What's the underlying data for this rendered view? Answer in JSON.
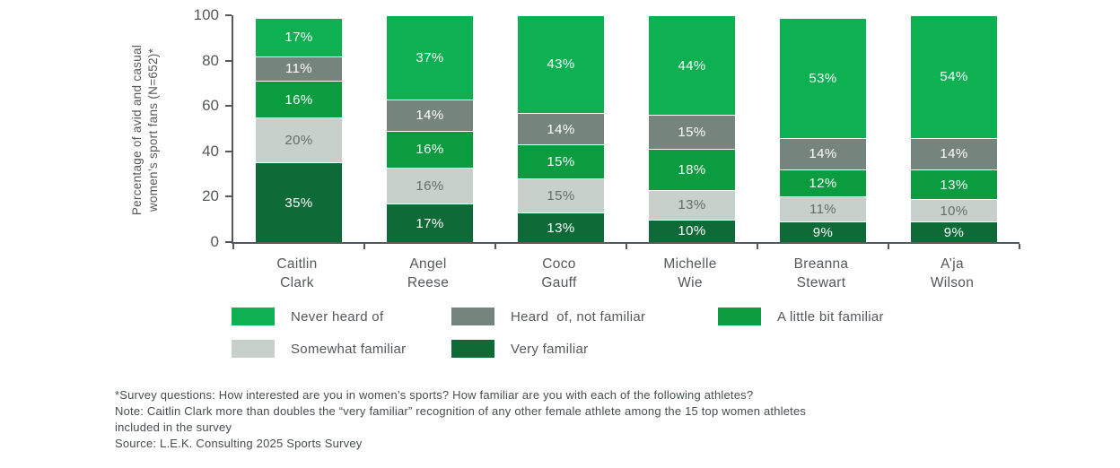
{
  "colors": {
    "never_heard_of": "#0db152",
    "heard_of_not_familiar": "#75857d",
    "a_little_bit_familiar": "#0a9c3e",
    "somewhat_familiar": "#c7d0cb",
    "very_familiar": "#0e6b38",
    "axis": "#54575b",
    "text": "#54575b",
    "footnote_text": "#474c4e",
    "segment_label_light": "#ffffff",
    "segment_label_dark": "#646e68"
  },
  "chart_data": {
    "type": "bar",
    "stacked": true,
    "title": "",
    "ylabel": "Percentage of avid and casual women’s sport fans (N=652)*",
    "ylabel_lines": [
      "Percentage of avid and casual",
      "women’s sport fans (N=652)*"
    ],
    "xlabel": "",
    "ylim": [
      0,
      100
    ],
    "yticks": [
      0,
      20,
      40,
      60,
      80,
      100
    ],
    "grid": false,
    "legend_position": "bottom",
    "series_order": "bottom-to-top",
    "categories": [
      "Caitlin Clark",
      "Angel Reese",
      "Coco Gauff",
      "Michelle Wie",
      "Breanna Stewart",
      "A’ja Wilson"
    ],
    "categories_lines": [
      [
        "Caitlin",
        "Clark"
      ],
      [
        "Angel",
        "Reese"
      ],
      [
        "Coco",
        "Gauff"
      ],
      [
        "Michelle",
        "Wie"
      ],
      [
        "Breanna",
        "Stewart"
      ],
      [
        "A’ja",
        "Wilson"
      ]
    ],
    "series": [
      {
        "name": "Very familiar",
        "color": "#0e6b38",
        "label_color": "#ffffff",
        "values": [
          35,
          17,
          13,
          10,
          9,
          9
        ]
      },
      {
        "name": "Somewhat familiar",
        "color": "#c7d0cb",
        "label_color": "#646e68",
        "values": [
          20,
          16,
          15,
          13,
          11,
          10
        ]
      },
      {
        "name": "A little bit familiar",
        "color": "#0a9c3e",
        "label_color": "#ffffff",
        "values": [
          16,
          16,
          15,
          18,
          12,
          13
        ]
      },
      {
        "name": "Heard  of, not familiar",
        "color": "#75857d",
        "label_color": "#ffffff",
        "values": [
          11,
          14,
          14,
          15,
          14,
          14
        ]
      },
      {
        "name": "Never heard of",
        "color": "#0db152",
        "label_color": "#ffffff",
        "values": [
          17,
          37,
          43,
          44,
          53,
          54
        ]
      }
    ]
  },
  "legend": {
    "items": [
      {
        "label": "Never heard of",
        "color": "#0db152"
      },
      {
        "label": "Heard  of, not familiar",
        "color": "#75857d"
      },
      {
        "label": "A little bit familiar",
        "color": "#0a9c3e"
      },
      {
        "label": "Somewhat familiar",
        "color": "#c7d0cb"
      },
      {
        "label": "Very familiar",
        "color": "#0e6b38"
      }
    ]
  },
  "footnotes": {
    "lines": [
      "*Survey questions: How interested are you in women’s sports? How familiar are you with each of the following athletes?",
      "Note: Caitlin Clark more than doubles the “very familiar” recognition of any other female athlete among the 15 top women athletes",
      "included in the survey",
      "Source: L.E.K. Consulting 2025 Sports Survey"
    ]
  }
}
